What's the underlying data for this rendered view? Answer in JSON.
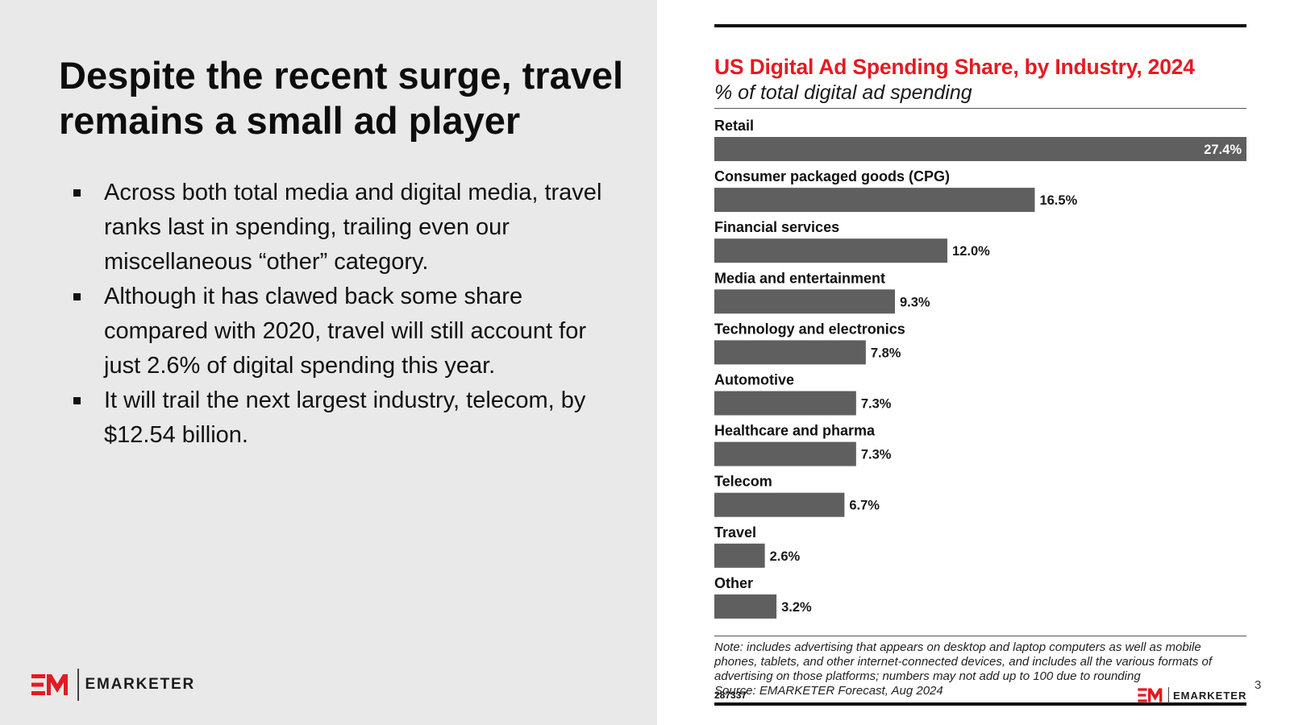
{
  "slide": {
    "title": "Despite the recent surge, travel remains a small ad player",
    "bullets": [
      "Across both total media and digital media, travel ranks last in spending, trailing even our miscellaneous “other” category.",
      "Although it has clawed back some share compared with 2020, travel will still account for just 2.6% of digital spending this year.",
      "It will trail the next largest industry, telecom, by $12.54 billion."
    ],
    "brand_name": "EMARKETER",
    "page_number": "3"
  },
  "chart_data": {
    "type": "bar",
    "orientation": "horizontal",
    "title": "US Digital Ad Spending Share, by Industry, 2024",
    "subtitle": "% of total digital ad spending",
    "categories": [
      "Retail",
      "Consumer packaged goods (CPG)",
      "Financial services",
      "Media and entertainment",
      "Technology and electronics",
      "Automotive",
      "Healthcare and pharma",
      "Telecom",
      "Travel",
      "Other"
    ],
    "values": [
      27.4,
      16.5,
      12.0,
      9.3,
      7.8,
      7.3,
      7.3,
      6.7,
      2.6,
      3.2
    ],
    "value_labels": [
      "27.4%",
      "16.5%",
      "12.0%",
      "9.3%",
      "7.8%",
      "7.3%",
      "7.3%",
      "6.7%",
      "2.6%",
      "3.2%"
    ],
    "xlim": [
      0,
      27.4
    ],
    "grid": false,
    "legend": "none",
    "note": "Note: includes advertising that appears on desktop and laptop computers as well as mobile phones, tablets, and other internet-connected devices, and includes all the various formats of advertising on those platforms; numbers may not add up to 100 due to rounding",
    "source": "Source: EMARKETER Forecast, Aug 2024",
    "chart_id": "287337",
    "brand_name": "EMARKETER"
  },
  "colors": {
    "bar": "#5f5f5f",
    "title": "#e31b23",
    "logo_red": "#e31b23",
    "inside_label": "#ffffff",
    "outside_label": "#1a1a1a",
    "category_label": "#111111"
  },
  "icons": {
    "logo": "em-logo-icon",
    "bullet": "square-bullet-icon"
  }
}
